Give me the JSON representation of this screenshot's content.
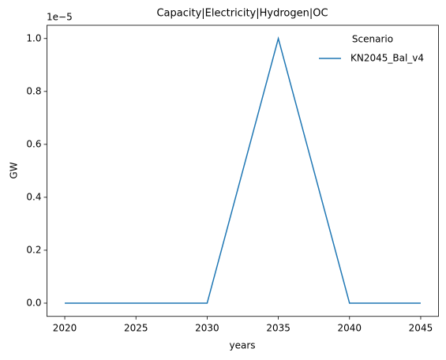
{
  "chart_data": {
    "type": "line",
    "title": "Capacity|Electricity|Hydrogen|OC",
    "x_label": "years",
    "y_label": "GW",
    "y_offset_label": "1e−5",
    "x": [
      2020,
      2025,
      2030,
      2035,
      2040,
      2045
    ],
    "series": [
      {
        "name": "KN2045_Bal_v4",
        "color": "#1f77b4",
        "values": [
          0,
          0,
          0,
          1e-05,
          0,
          0
        ]
      }
    ],
    "legend_title": "Scenario",
    "legend": "upper right",
    "xlim": [
      2018.75,
      2046.25
    ],
    "xticks": [
      2020,
      2025,
      2030,
      2035,
      2040,
      2045
    ],
    "ylim": [
      -5e-07,
      1.05e-05
    ],
    "yticks": [
      {
        "value": 0,
        "label": "0.0"
      },
      {
        "value": 2e-06,
        "label": "0.2"
      },
      {
        "value": 4e-06,
        "label": "0.4"
      },
      {
        "value": 6e-06,
        "label": "0.6"
      },
      {
        "value": 8e-06,
        "label": "0.8"
      },
      {
        "value": 1e-05,
        "label": "1.0"
      }
    ],
    "grid": false
  }
}
